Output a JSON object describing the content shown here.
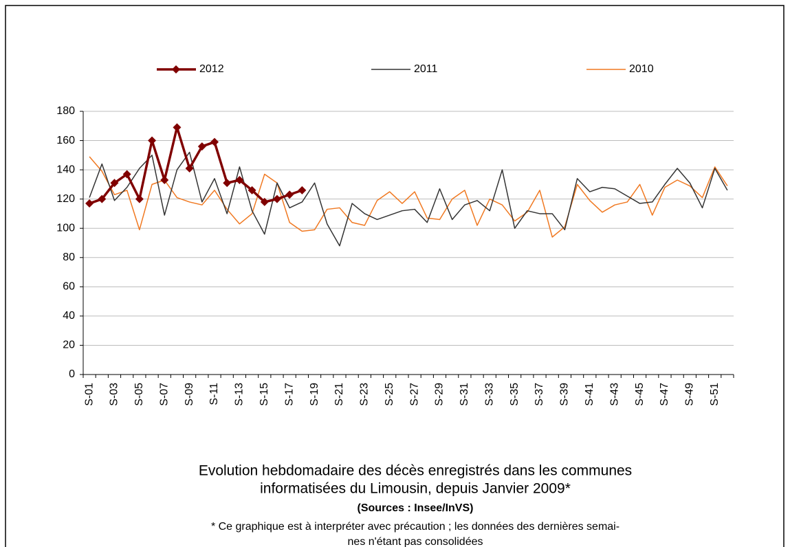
{
  "chart_data": {
    "type": "line",
    "title": [
      "Evolution hebdomadaire des décès enregistrés dans les communes",
      "informatisées du Limousin, depuis Janvier 2009*"
    ],
    "source": "(Sources : Insee/InVS)",
    "note": [
      "* Ce graphique est à interpréter avec précaution ; les données des dernières semai-",
      "nes n'étant pas consolidées"
    ],
    "categories": [
      "S-01",
      null,
      "S-03",
      null,
      "S-05",
      null,
      "S-07",
      null,
      "S-09",
      null,
      "S-11",
      null,
      "S-13",
      null,
      "S-15",
      null,
      "S-17",
      null,
      "S-19",
      null,
      "S-21",
      null,
      "S-23",
      null,
      "S-25",
      null,
      "S-27",
      null,
      "S-29",
      null,
      "S-31",
      null,
      "S-33",
      null,
      "S-35",
      null,
      "S-37",
      null,
      "S-39",
      null,
      "S-41",
      null,
      "S-43",
      null,
      "S-45",
      null,
      "S-47",
      null,
      "S-49",
      null,
      "S-51",
      null
    ],
    "series": [
      {
        "name": "2012",
        "color": "#800000",
        "marker": "diamond",
        "values": [
          117,
          120,
          131,
          137,
          120,
          160,
          133,
          169,
          141,
          156,
          159,
          131,
          133,
          126,
          118,
          120,
          123,
          126,
          null,
          null,
          null,
          null,
          null,
          null,
          null,
          null,
          null,
          null,
          null,
          null,
          null,
          null,
          null,
          null,
          null,
          null,
          null,
          null,
          null,
          null,
          null,
          null,
          null,
          null,
          null,
          null,
          null,
          null,
          null,
          null,
          null,
          null
        ]
      },
      {
        "name": "2011",
        "color": "#333333",
        "values": [
          121,
          144,
          119,
          128,
          141,
          150,
          109,
          140,
          152,
          118,
          134,
          110,
          142,
          112,
          96,
          131,
          114,
          118,
          131,
          103,
          88,
          117,
          110,
          106,
          109,
          112,
          113,
          104,
          127,
          106,
          116,
          119,
          112,
          140,
          100,
          112,
          110,
          110,
          99,
          134,
          125,
          128,
          127,
          122,
          117,
          118,
          130,
          141,
          131,
          114,
          141,
          126
        ]
      },
      {
        "name": "2010",
        "color": "#f07820",
        "values": [
          149,
          139,
          123,
          126,
          99,
          130,
          133,
          121,
          118,
          116,
          126,
          113,
          103,
          110,
          137,
          131,
          104,
          98,
          99,
          113,
          114,
          104,
          102,
          119,
          125,
          117,
          125,
          107,
          106,
          120,
          126,
          102,
          120,
          116,
          105,
          111,
          126,
          94,
          101,
          130,
          119,
          111,
          116,
          118,
          130,
          109,
          128,
          133,
          129,
          121,
          142,
          129
        ]
      }
    ],
    "ylim": [
      0,
      180
    ],
    "yticks": [
      0,
      20,
      40,
      60,
      80,
      100,
      120,
      140,
      160,
      180
    ],
    "grid": true,
    "legend": "top"
  }
}
